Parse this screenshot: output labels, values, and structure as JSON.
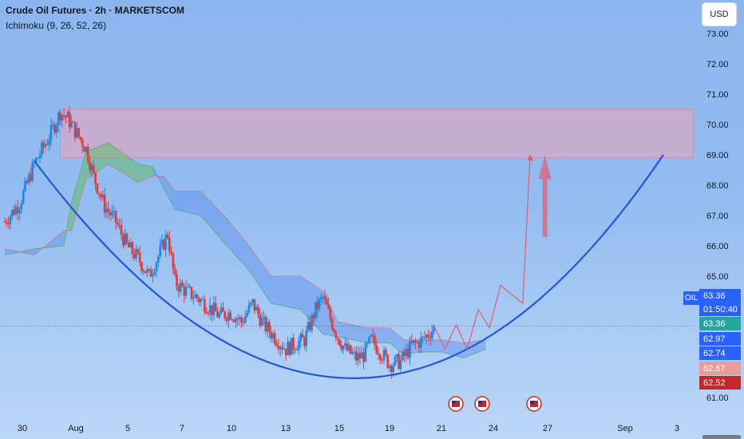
{
  "header": {
    "title": "Crude Oil Futures · 2h · MARKETSCOM",
    "indicator": "Ichimoku (9, 26, 52, 26)"
  },
  "currency_button": "USD",
  "symbol_tag": "OIL",
  "price_tags": [
    {
      "label": "63.36",
      "color": "#2962ff",
      "value": 63.36
    },
    {
      "label": "01:50:40",
      "color": "#2962ff"
    },
    {
      "label": "63.36",
      "color": "#26a69a",
      "value": 63.36
    },
    {
      "label": "62.97",
      "color": "#2962ff",
      "value": 62.97
    },
    {
      "label": "62.74",
      "color": "#2962ff",
      "value": 62.74
    },
    {
      "label": "62.67",
      "color": "#ef9a9a",
      "value": 62.67
    },
    {
      "label": "62.52",
      "color": "#c62828",
      "value": 62.52
    }
  ],
  "colors": {
    "candle_up": "#1e88e5",
    "candle_down": "#e53935",
    "cloud_bull": "#66bb6a",
    "cloud_bear": "#5c8df0",
    "resistance_zone": "#f0a3b8",
    "curve": "#2157d6",
    "projection": "#e35b6b"
  },
  "chart_data": {
    "type": "candlestick",
    "title": "Crude Oil Futures · 2h · MARKETSCOM",
    "y_axis": {
      "ticks": [
        "73.00",
        "72.00",
        "71.00",
        "70.00",
        "69.00",
        "68.00",
        "67.00",
        "66.00",
        "65.00",
        "64.00",
        "63.00",
        "62.00",
        "61.00"
      ],
      "range": [
        60.8,
        73.4
      ]
    },
    "x_axis": {
      "ticks": [
        "30",
        "Aug",
        "5",
        "7",
        "10",
        "13",
        "15",
        "19",
        "21",
        "24",
        "27",
        "Sep",
        "3"
      ]
    },
    "close_path": [
      {
        "x": 0,
        "y": 66.8
      },
      {
        "x": 4,
        "y": 67.4
      },
      {
        "x": 8,
        "y": 68.7
      },
      {
        "x": 12,
        "y": 69.6
      },
      {
        "x": 15,
        "y": 70.4
      },
      {
        "x": 17,
        "y": 70.2
      },
      {
        "x": 20,
        "y": 69.6
      },
      {
        "x": 22,
        "y": 69.2
      },
      {
        "x": 24,
        "y": 68.3
      },
      {
        "x": 27,
        "y": 67.3
      },
      {
        "x": 30,
        "y": 66.8
      },
      {
        "x": 33,
        "y": 66.0
      },
      {
        "x": 36,
        "y": 65.6
      },
      {
        "x": 39,
        "y": 65.0
      },
      {
        "x": 42,
        "y": 65.8
      },
      {
        "x": 44,
        "y": 66.4
      },
      {
        "x": 46,
        "y": 64.8
      },
      {
        "x": 49,
        "y": 64.5
      },
      {
        "x": 52,
        "y": 64.3
      },
      {
        "x": 55,
        "y": 64.0
      },
      {
        "x": 58,
        "y": 63.7
      },
      {
        "x": 61,
        "y": 63.8
      },
      {
        "x": 64,
        "y": 63.5
      },
      {
        "x": 67,
        "y": 64.1
      },
      {
        "x": 70,
        "y": 63.4
      },
      {
        "x": 73,
        "y": 63.0
      },
      {
        "x": 76,
        "y": 62.6
      },
      {
        "x": 79,
        "y": 62.8
      },
      {
        "x": 81,
        "y": 62.9
      },
      {
        "x": 84,
        "y": 63.9
      },
      {
        "x": 86,
        "y": 64.3
      },
      {
        "x": 88,
        "y": 63.6
      },
      {
        "x": 90,
        "y": 63.0
      },
      {
        "x": 92,
        "y": 62.6
      },
      {
        "x": 95,
        "y": 62.3
      },
      {
        "x": 97,
        "y": 62.4
      },
      {
        "x": 99,
        "y": 62.9
      },
      {
        "x": 101,
        "y": 62.6
      },
      {
        "x": 104,
        "y": 62.1
      },
      {
        "x": 107,
        "y": 62.2
      },
      {
        "x": 110,
        "y": 62.7
      },
      {
        "x": 113,
        "y": 62.9
      },
      {
        "x": 116,
        "y": 63.3
      }
    ],
    "resistance_zone": {
      "from": 68.9,
      "to": 70.5
    },
    "projection_target": 69.0,
    "projection_path": [
      {
        "x": 116,
        "y": 63.36
      },
      {
        "x": 119,
        "y": 62.6
      },
      {
        "x": 122,
        "y": 63.4
      },
      {
        "x": 125,
        "y": 62.6
      },
      {
        "x": 128,
        "y": 63.9
      },
      {
        "x": 131,
        "y": 63.3
      },
      {
        "x": 134,
        "y": 64.7
      },
      {
        "x": 140,
        "y": 64.1
      },
      {
        "x": 142,
        "y": 69.0
      }
    ],
    "curve": {
      "left": {
        "x": 8,
        "y": 68.8
      },
      "bottom": {
        "x": 95,
        "y": 61.4
      },
      "right": {
        "x": 178,
        "y": 69.0
      }
    },
    "events": [
      {
        "x": 118,
        "label": "US"
      },
      {
        "x": 125,
        "label": "US"
      },
      {
        "x": 138,
        "label": "US"
      }
    ],
    "x_max": 180,
    "ichimoku_cloud": [
      {
        "x": 0,
        "a": 65.7,
        "b": 65.9
      },
      {
        "x": 8,
        "a": 65.9,
        "b": 65.7
      },
      {
        "x": 16,
        "a": 66.0,
        "b": 66.5
      },
      {
        "x": 18,
        "a": 67.4,
        "b": 66.5
      },
      {
        "x": 22,
        "a": 69.1,
        "b": 68.2
      },
      {
        "x": 28,
        "a": 69.4,
        "b": 68.7
      },
      {
        "x": 36,
        "a": 68.7,
        "b": 68.1
      },
      {
        "x": 40,
        "a": 68.6,
        "b": 68.3
      },
      {
        "x": 43,
        "a": 67.9,
        "b": 68.3
      },
      {
        "x": 46,
        "a": 67.2,
        "b": 67.8
      },
      {
        "x": 53,
        "a": 67.0,
        "b": 67.8
      },
      {
        "x": 60,
        "a": 66.0,
        "b": 66.9
      },
      {
        "x": 66,
        "a": 65.2,
        "b": 66.0
      },
      {
        "x": 72,
        "a": 64.1,
        "b": 65.0
      },
      {
        "x": 80,
        "a": 63.9,
        "b": 65.0
      },
      {
        "x": 86,
        "a": 63.1,
        "b": 64.5
      },
      {
        "x": 90,
        "a": 63.0,
        "b": 63.5
      },
      {
        "x": 98,
        "a": 62.8,
        "b": 63.3
      },
      {
        "x": 104,
        "a": 62.8,
        "b": 63.3
      },
      {
        "x": 108,
        "a": 62.4,
        "b": 62.9
      },
      {
        "x": 112,
        "a": 62.5,
        "b": 62.9
      },
      {
        "x": 118,
        "a": 62.5,
        "b": 62.9
      },
      {
        "x": 124,
        "a": 62.3,
        "b": 62.8
      },
      {
        "x": 130,
        "a": 62.6,
        "b": 62.9
      }
    ]
  }
}
